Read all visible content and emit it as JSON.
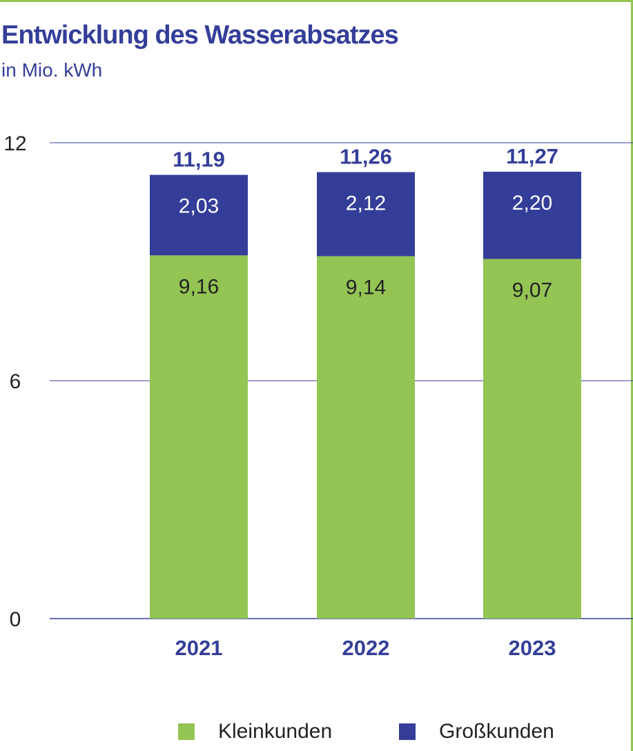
{
  "chart_data": {
    "type": "bar",
    "stacked": true,
    "title": "Entwicklung des Wasserabsatzes",
    "subtitle": "in Mio. kWh",
    "categories": [
      "2021",
      "2022",
      "2023"
    ],
    "series": [
      {
        "name": "Kleinkunden",
        "values": [
          9.16,
          9.14,
          9.07
        ],
        "labels": [
          "9,16",
          "9,14",
          "9,07"
        ],
        "color": "#94c454"
      },
      {
        "name": "Großkunden",
        "values": [
          2.03,
          2.12,
          2.2
        ],
        "labels": [
          "2,03",
          "2,12",
          "2,20"
        ],
        "color": "#343e99"
      }
    ],
    "totals": [
      "11,19",
      "11,26",
      "11,27"
    ],
    "yticks": [
      "0",
      "6",
      "12"
    ],
    "ytick_values": [
      0,
      6,
      12
    ],
    "ylim": [
      0,
      12
    ],
    "grid": true,
    "legend_position": "bottom"
  },
  "colors": {
    "accent": "#343e99",
    "green": "#94c454",
    "grid": "#343e99"
  }
}
